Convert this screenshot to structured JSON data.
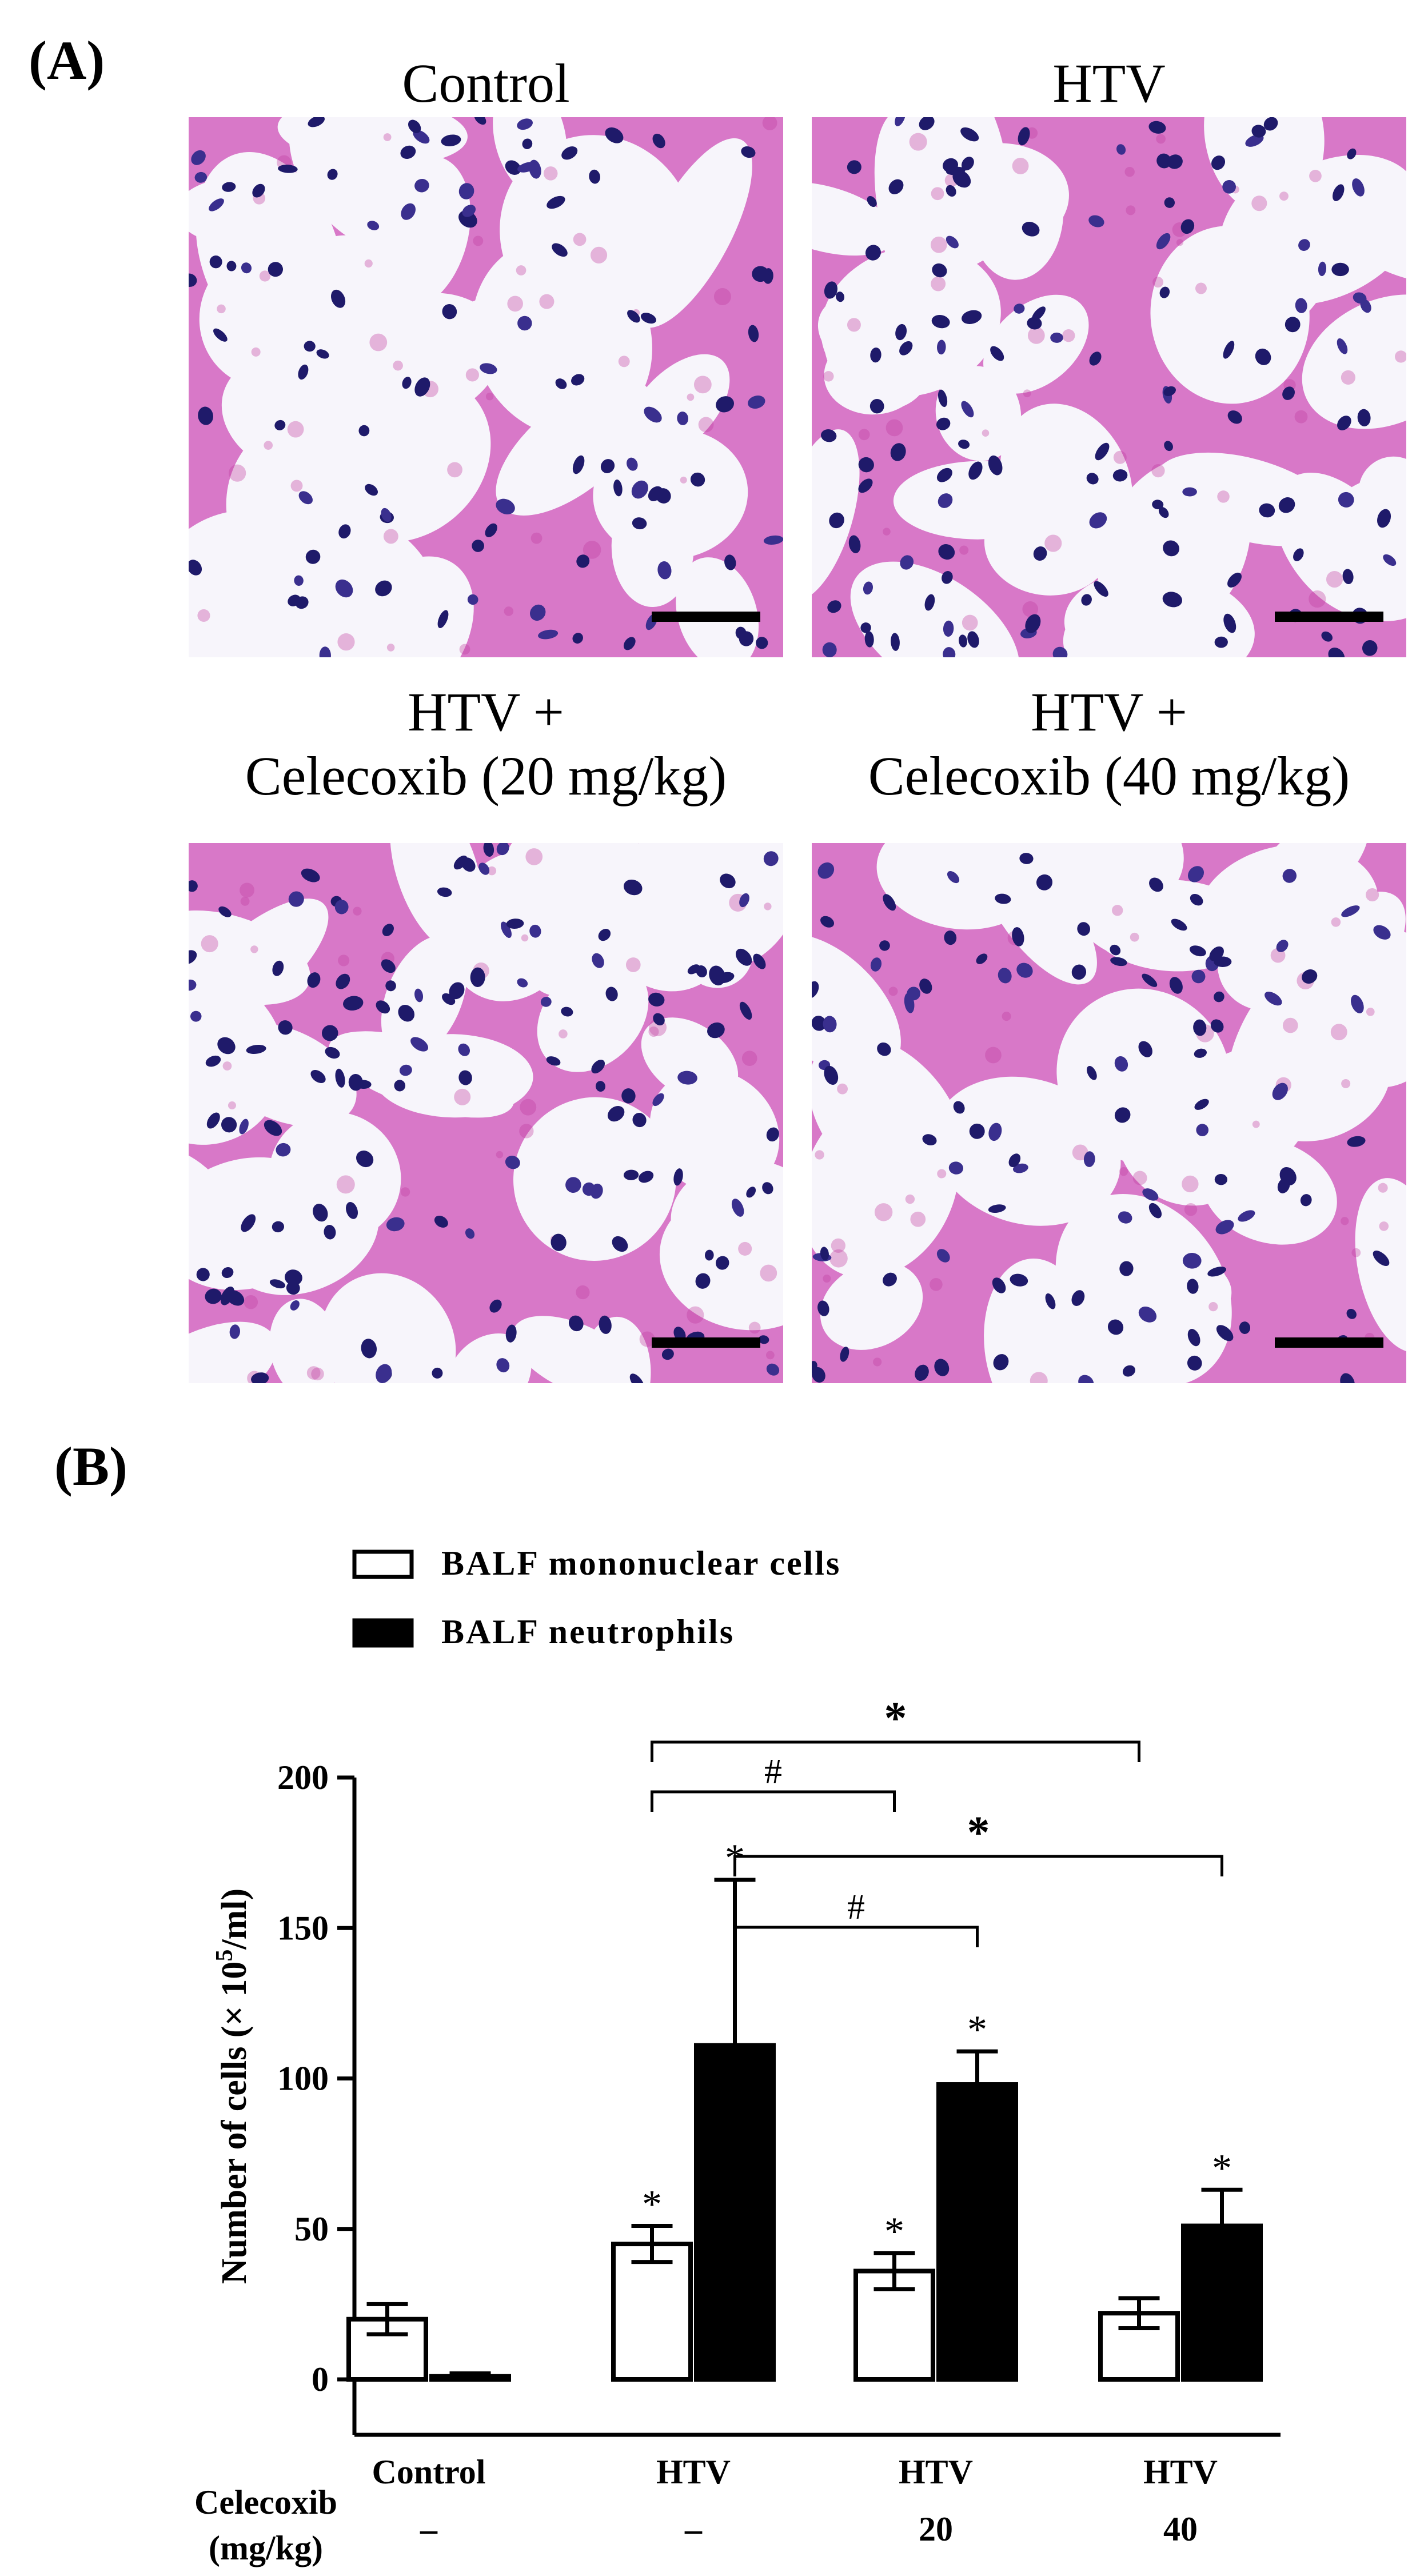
{
  "panel_a": {
    "label": "(A)",
    "tiles": [
      {
        "title_lines": [
          "Control"
        ]
      },
      {
        "title_lines": [
          "HTV"
        ]
      },
      {
        "title_lines": [
          "HTV +",
          "Celecoxib (20 mg/kg)"
        ]
      },
      {
        "title_lines": [
          "HTV +",
          "Celecoxib (40 mg/kg)"
        ]
      }
    ]
  },
  "panel_b": {
    "label": "(B)"
  },
  "chart_data": {
    "type": "bar",
    "ylabel": "Number of cells (× 10",
    "ylabel_sup": "5",
    "ylabel_tail": "/ml)",
    "ylim": [
      0,
      200
    ],
    "yticks": [
      0,
      50,
      100,
      150,
      200
    ],
    "categories": [
      "Control",
      "HTV",
      "HTV",
      "HTV"
    ],
    "celecoxib_label_lines": [
      "Celecoxib",
      "(mg/kg)"
    ],
    "celecoxib_doses": [
      "–",
      "–",
      "20",
      "40"
    ],
    "series": [
      {
        "name": "BALF mononuclear cells",
        "fill": "#ffffff",
        "values": [
          20,
          45,
          36,
          22
        ],
        "errors": [
          5,
          6,
          6,
          5
        ],
        "marks": [
          "",
          "*",
          "*",
          ""
        ]
      },
      {
        "name": "BALF neutrophils",
        "fill": "#000000",
        "values": [
          1,
          111,
          98,
          51
        ],
        "errors": [
          1,
          55,
          11,
          12
        ],
        "marks": [
          "",
          "*",
          "*",
          "*"
        ]
      }
    ],
    "comparisons": [
      {
        "from": [
          1,
          0
        ],
        "to": [
          3,
          0
        ],
        "symbol": "*"
      },
      {
        "from": [
          1,
          0
        ],
        "to": [
          2,
          0
        ],
        "symbol": "#"
      },
      {
        "from": [
          1,
          1
        ],
        "to": [
          3,
          1
        ],
        "symbol": "*"
      },
      {
        "from": [
          1,
          1
        ],
        "to": [
          2,
          1
        ],
        "symbol": "#"
      }
    ],
    "legend_position": "top-left",
    "grid": false
  }
}
